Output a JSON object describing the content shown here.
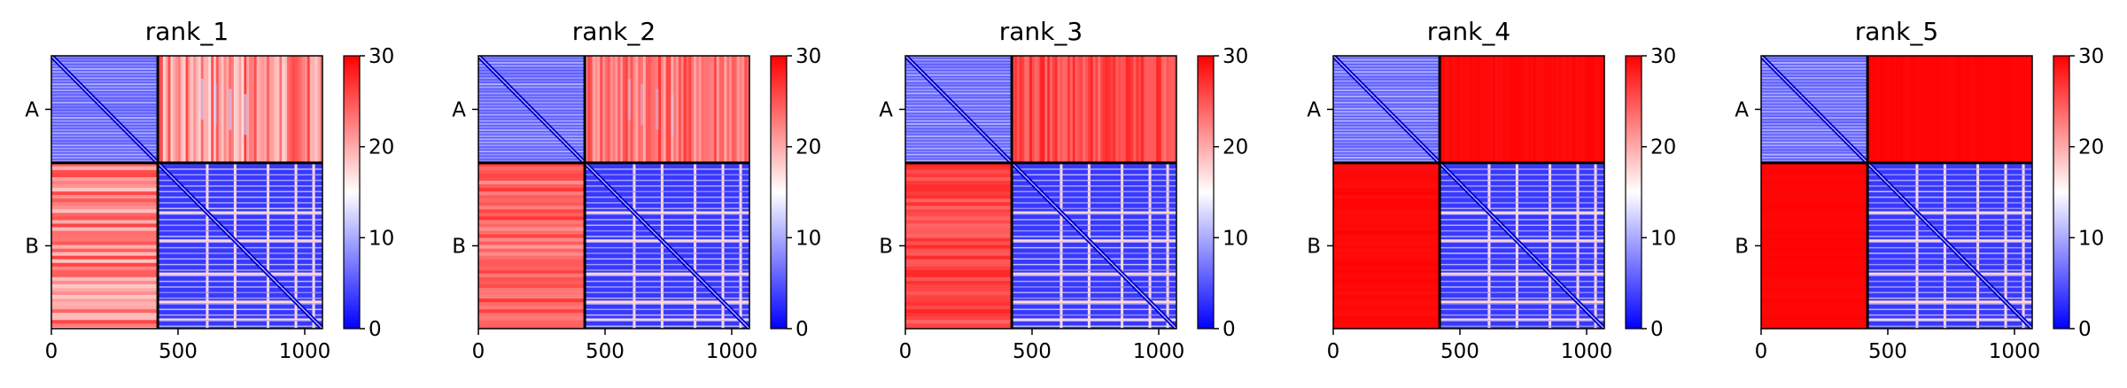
{
  "chart_data": [
    {
      "type": "heatmap",
      "title": "rank_1",
      "x_ticks": [
        "0",
        "500",
        "1000"
      ],
      "y_tick_labels": [
        "A",
        "B"
      ],
      "colorbar_ticks": [
        "0",
        "10",
        "20",
        "30"
      ],
      "colorscale": [
        "#0000ff",
        "#ffffff",
        "#ff0000"
      ],
      "value_range": [
        0,
        30
      ],
      "chain_boundary": 420,
      "total_length": 1070,
      "off_diagonal_level": 0.22
    },
    {
      "type": "heatmap",
      "title": "rank_2",
      "x_ticks": [
        "0",
        "500",
        "1000"
      ],
      "y_tick_labels": [
        "A",
        "B"
      ],
      "colorbar_ticks": [
        "0",
        "10",
        "20",
        "30"
      ],
      "colorscale": [
        "#0000ff",
        "#ffffff",
        "#ff0000"
      ],
      "value_range": [
        0,
        30
      ],
      "chain_boundary": 420,
      "total_length": 1070,
      "off_diagonal_level": 0.4
    },
    {
      "type": "heatmap",
      "title": "rank_3",
      "x_ticks": [
        "0",
        "500",
        "1000"
      ],
      "y_tick_labels": [
        "A",
        "B"
      ],
      "colorbar_ticks": [
        "0",
        "10",
        "20",
        "30"
      ],
      "colorscale": [
        "#0000ff",
        "#ffffff",
        "#ff0000"
      ],
      "value_range": [
        0,
        30
      ],
      "chain_boundary": 420,
      "total_length": 1070,
      "off_diagonal_level": 0.6
    },
    {
      "type": "heatmap",
      "title": "rank_4",
      "x_ticks": [
        "0",
        "500",
        "1000"
      ],
      "y_tick_labels": [
        "A",
        "B"
      ],
      "colorbar_ticks": [
        "0",
        "10",
        "20",
        "30"
      ],
      "colorscale": [
        "#0000ff",
        "#ffffff",
        "#ff0000"
      ],
      "value_range": [
        0,
        30
      ],
      "chain_boundary": 420,
      "total_length": 1070,
      "off_diagonal_level": 0.95
    },
    {
      "type": "heatmap",
      "title": "rank_5",
      "x_ticks": [
        "0",
        "500",
        "1000"
      ],
      "y_tick_labels": [
        "A",
        "B"
      ],
      "colorbar_ticks": [
        "0",
        "10",
        "20",
        "30"
      ],
      "colorscale": [
        "#0000ff",
        "#ffffff",
        "#ff0000"
      ],
      "value_range": [
        0,
        30
      ],
      "chain_boundary": 420,
      "total_length": 1070,
      "off_diagonal_level": 0.97
    }
  ]
}
